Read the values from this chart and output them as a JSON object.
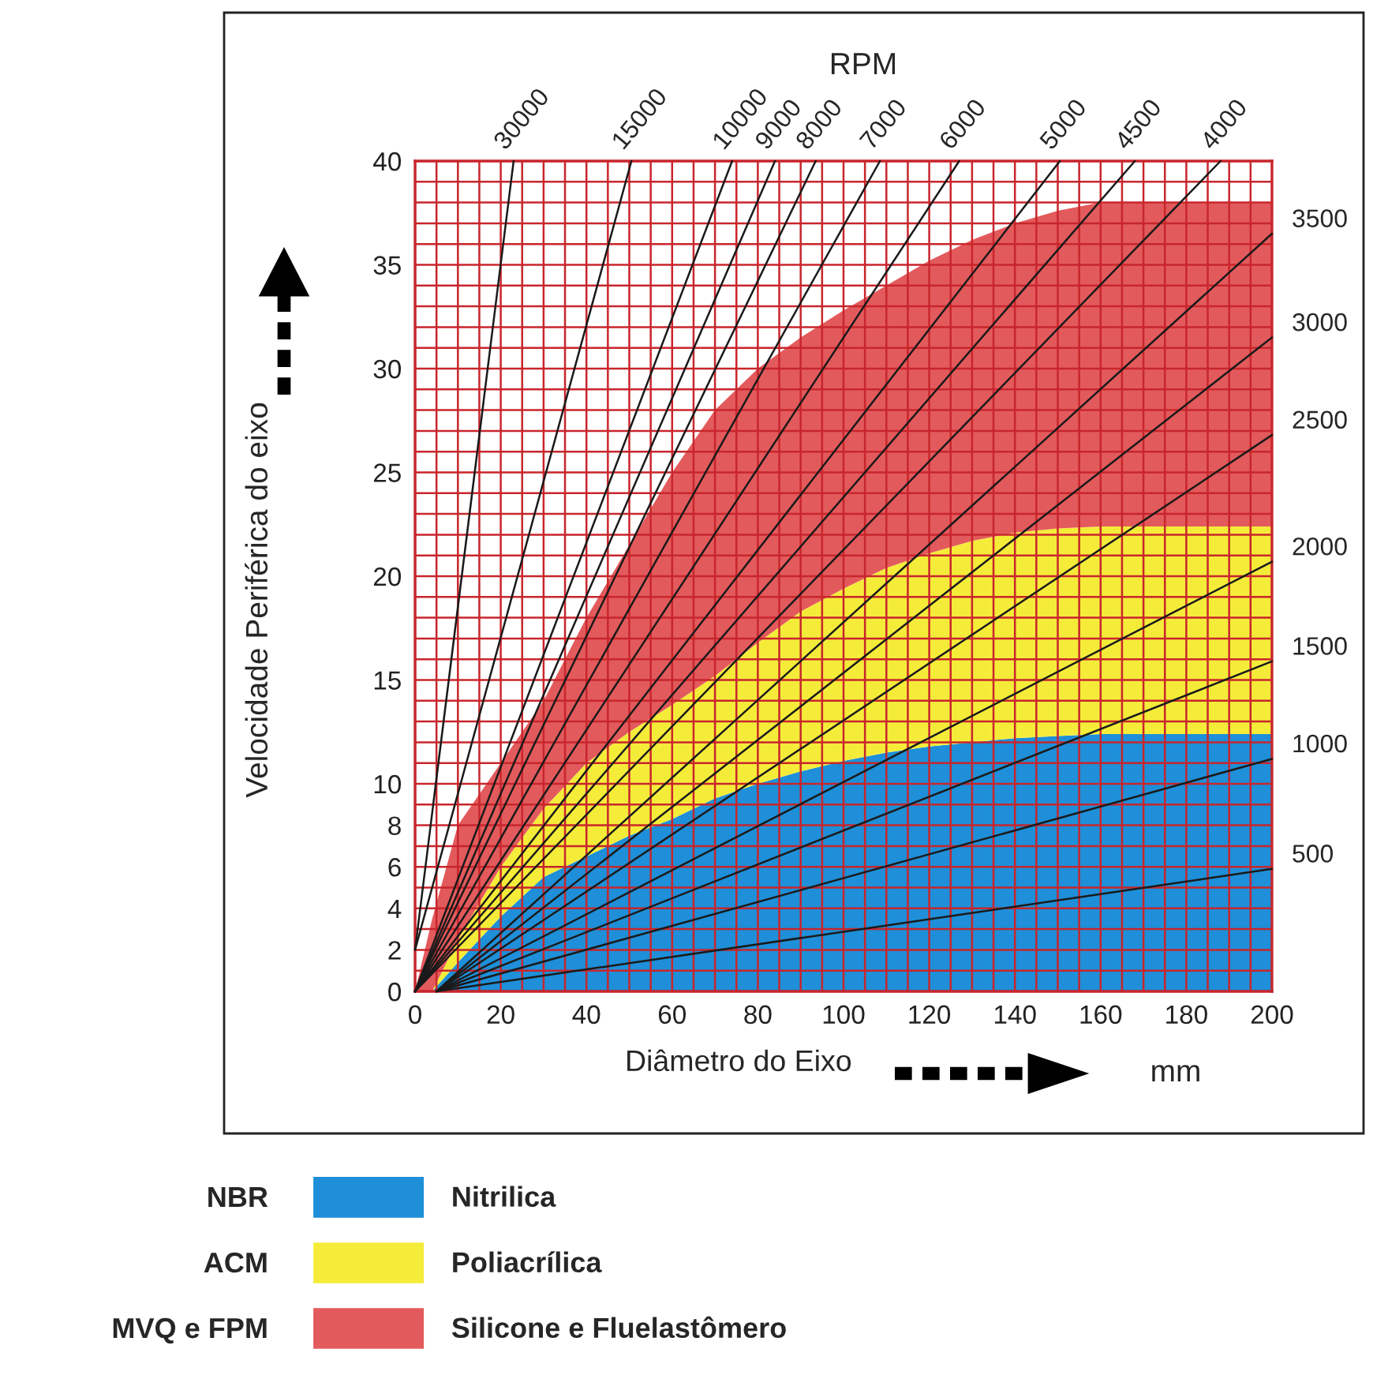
{
  "chart_data": {
    "type": "area",
    "xlabel": "Diâmetro do Eixo",
    "ylabel": "Velocidade Periférica do eixo",
    "annotations": [
      "RPM",
      "mm",
      "NBR",
      "ACM",
      "MVQ e FPM"
    ],
    "xlim": [
      0,
      200
    ],
    "ylim": [
      0,
      40
    ],
    "xticks": [
      0,
      20,
      40,
      60,
      80,
      100,
      120,
      140,
      160,
      180,
      200
    ],
    "yticks": [
      0,
      2,
      4,
      6,
      8,
      10,
      15,
      20,
      25,
      30,
      35,
      40
    ],
    "grid": true,
    "legend": "bottom",
    "stacked": true,
    "line_style": "solid",
    "series": [
      {
        "type": "area",
        "name": "Nitrilica",
        "color": "#1e8fd8",
        "x": [
          0,
          4,
          10,
          20,
          30,
          40,
          50,
          60,
          70,
          80,
          90,
          100,
          110,
          120,
          130,
          140,
          150,
          160,
          170,
          180,
          190,
          200
        ],
        "values": [
          0,
          0,
          1.4,
          3.6,
          5.5,
          6.5,
          7.5,
          8.3,
          9.3,
          10,
          10.6,
          11.1,
          11.5,
          11.8,
          12,
          12.2,
          12.3,
          12.4,
          12.4,
          12.4,
          12.4,
          12.4
        ]
      },
      {
        "type": "area",
        "name": "Poliacrílica",
        "color": "#f5ec3a",
        "x": [
          0,
          4,
          10,
          20,
          30,
          40,
          50,
          60,
          70,
          80,
          90,
          100,
          110,
          120,
          130,
          140,
          150,
          160,
          170,
          180,
          190,
          200
        ],
        "values": [
          0,
          0,
          1.1,
          2.4,
          3.3,
          4.5,
          5,
          5.5,
          5.9,
          6.8,
          7.7,
          8.3,
          8.9,
          9.3,
          9.7,
          9.9,
          10,
          10,
          10,
          10,
          10,
          10
        ]
      },
      {
        "type": "area",
        "name": "Silicone e Fluelastômero",
        "color": "#e35a5c",
        "x": [
          0,
          4,
          10,
          20,
          30,
          40,
          50,
          60,
          70,
          80,
          90,
          100,
          110,
          120,
          130,
          140,
          150,
          160,
          170,
          180,
          190,
          200
        ],
        "values": [
          0,
          3.5,
          5.5,
          5,
          5.2,
          7,
          9,
          11.2,
          12.8,
          13.2,
          13.2,
          13.4,
          13.6,
          14.1,
          14.5,
          14.9,
          15.3,
          15.6,
          15.6,
          15.6,
          15.6,
          15.6
        ]
      },
      {
        "type": "line",
        "name": "30000",
        "color": "#1a1a1a",
        "x": [
          0,
          23
        ],
        "values": [
          2,
          40
        ]
      },
      {
        "type": "line",
        "name": "15000",
        "color": "#1a1a1a",
        "x": [
          0,
          50.5
        ],
        "values": [
          2,
          40
        ]
      },
      {
        "type": "line",
        "name": "10000",
        "color": "#1a1a1a",
        "x": [
          0,
          74
        ],
        "values": [
          0,
          40
        ]
      },
      {
        "type": "line",
        "name": "9000",
        "color": "#1a1a1a",
        "x": [
          0,
          84
        ],
        "values": [
          0,
          40
        ]
      },
      {
        "type": "line",
        "name": "8000",
        "color": "#1a1a1a",
        "x": [
          0,
          93.5
        ],
        "values": [
          0,
          40
        ]
      },
      {
        "type": "line",
        "name": "7000",
        "color": "#1a1a1a",
        "x": [
          0,
          108.5
        ],
        "values": [
          0,
          40
        ]
      },
      {
        "type": "line",
        "name": "6000",
        "color": "#1a1a1a",
        "x": [
          0,
          127
        ],
        "values": [
          0,
          40
        ]
      },
      {
        "type": "line",
        "name": "5000",
        "color": "#1a1a1a",
        "x": [
          0,
          150.5
        ],
        "values": [
          0,
          40
        ]
      },
      {
        "type": "line",
        "name": "4500",
        "color": "#1a1a1a",
        "x": [
          0,
          168
        ],
        "values": [
          0,
          40
        ]
      },
      {
        "type": "line",
        "name": "4000",
        "color": "#1a1a1a",
        "x": [
          0,
          188
        ],
        "values": [
          0,
          40
        ]
      },
      {
        "type": "line",
        "name": "3500",
        "color": "#1a1a1a",
        "x": [
          5,
          200
        ],
        "values": [
          0,
          36.5
        ]
      },
      {
        "type": "line",
        "name": "3000",
        "color": "#1a1a1a",
        "x": [
          5,
          200
        ],
        "values": [
          0,
          31.5
        ]
      },
      {
        "type": "line",
        "name": "2500",
        "color": "#1a1a1a",
        "x": [
          5,
          200
        ],
        "values": [
          0,
          26.8
        ]
      },
      {
        "type": "line",
        "name": "2000",
        "color": "#1a1a1a",
        "x": [
          5,
          200
        ],
        "values": [
          0,
          20.7
        ]
      },
      {
        "type": "line",
        "name": "1500",
        "color": "#1a1a1a",
        "x": [
          5,
          200
        ],
        "values": [
          0,
          15.9
        ]
      },
      {
        "type": "line",
        "name": "1000",
        "color": "#1a1a1a",
        "x": [
          5,
          200
        ],
        "values": [
          0,
          11.2
        ]
      },
      {
        "type": "line",
        "name": "500",
        "color": "#1a1a1a",
        "x": [
          5,
          200
        ],
        "values": [
          0,
          5.9
        ]
      }
    ]
  }
}
